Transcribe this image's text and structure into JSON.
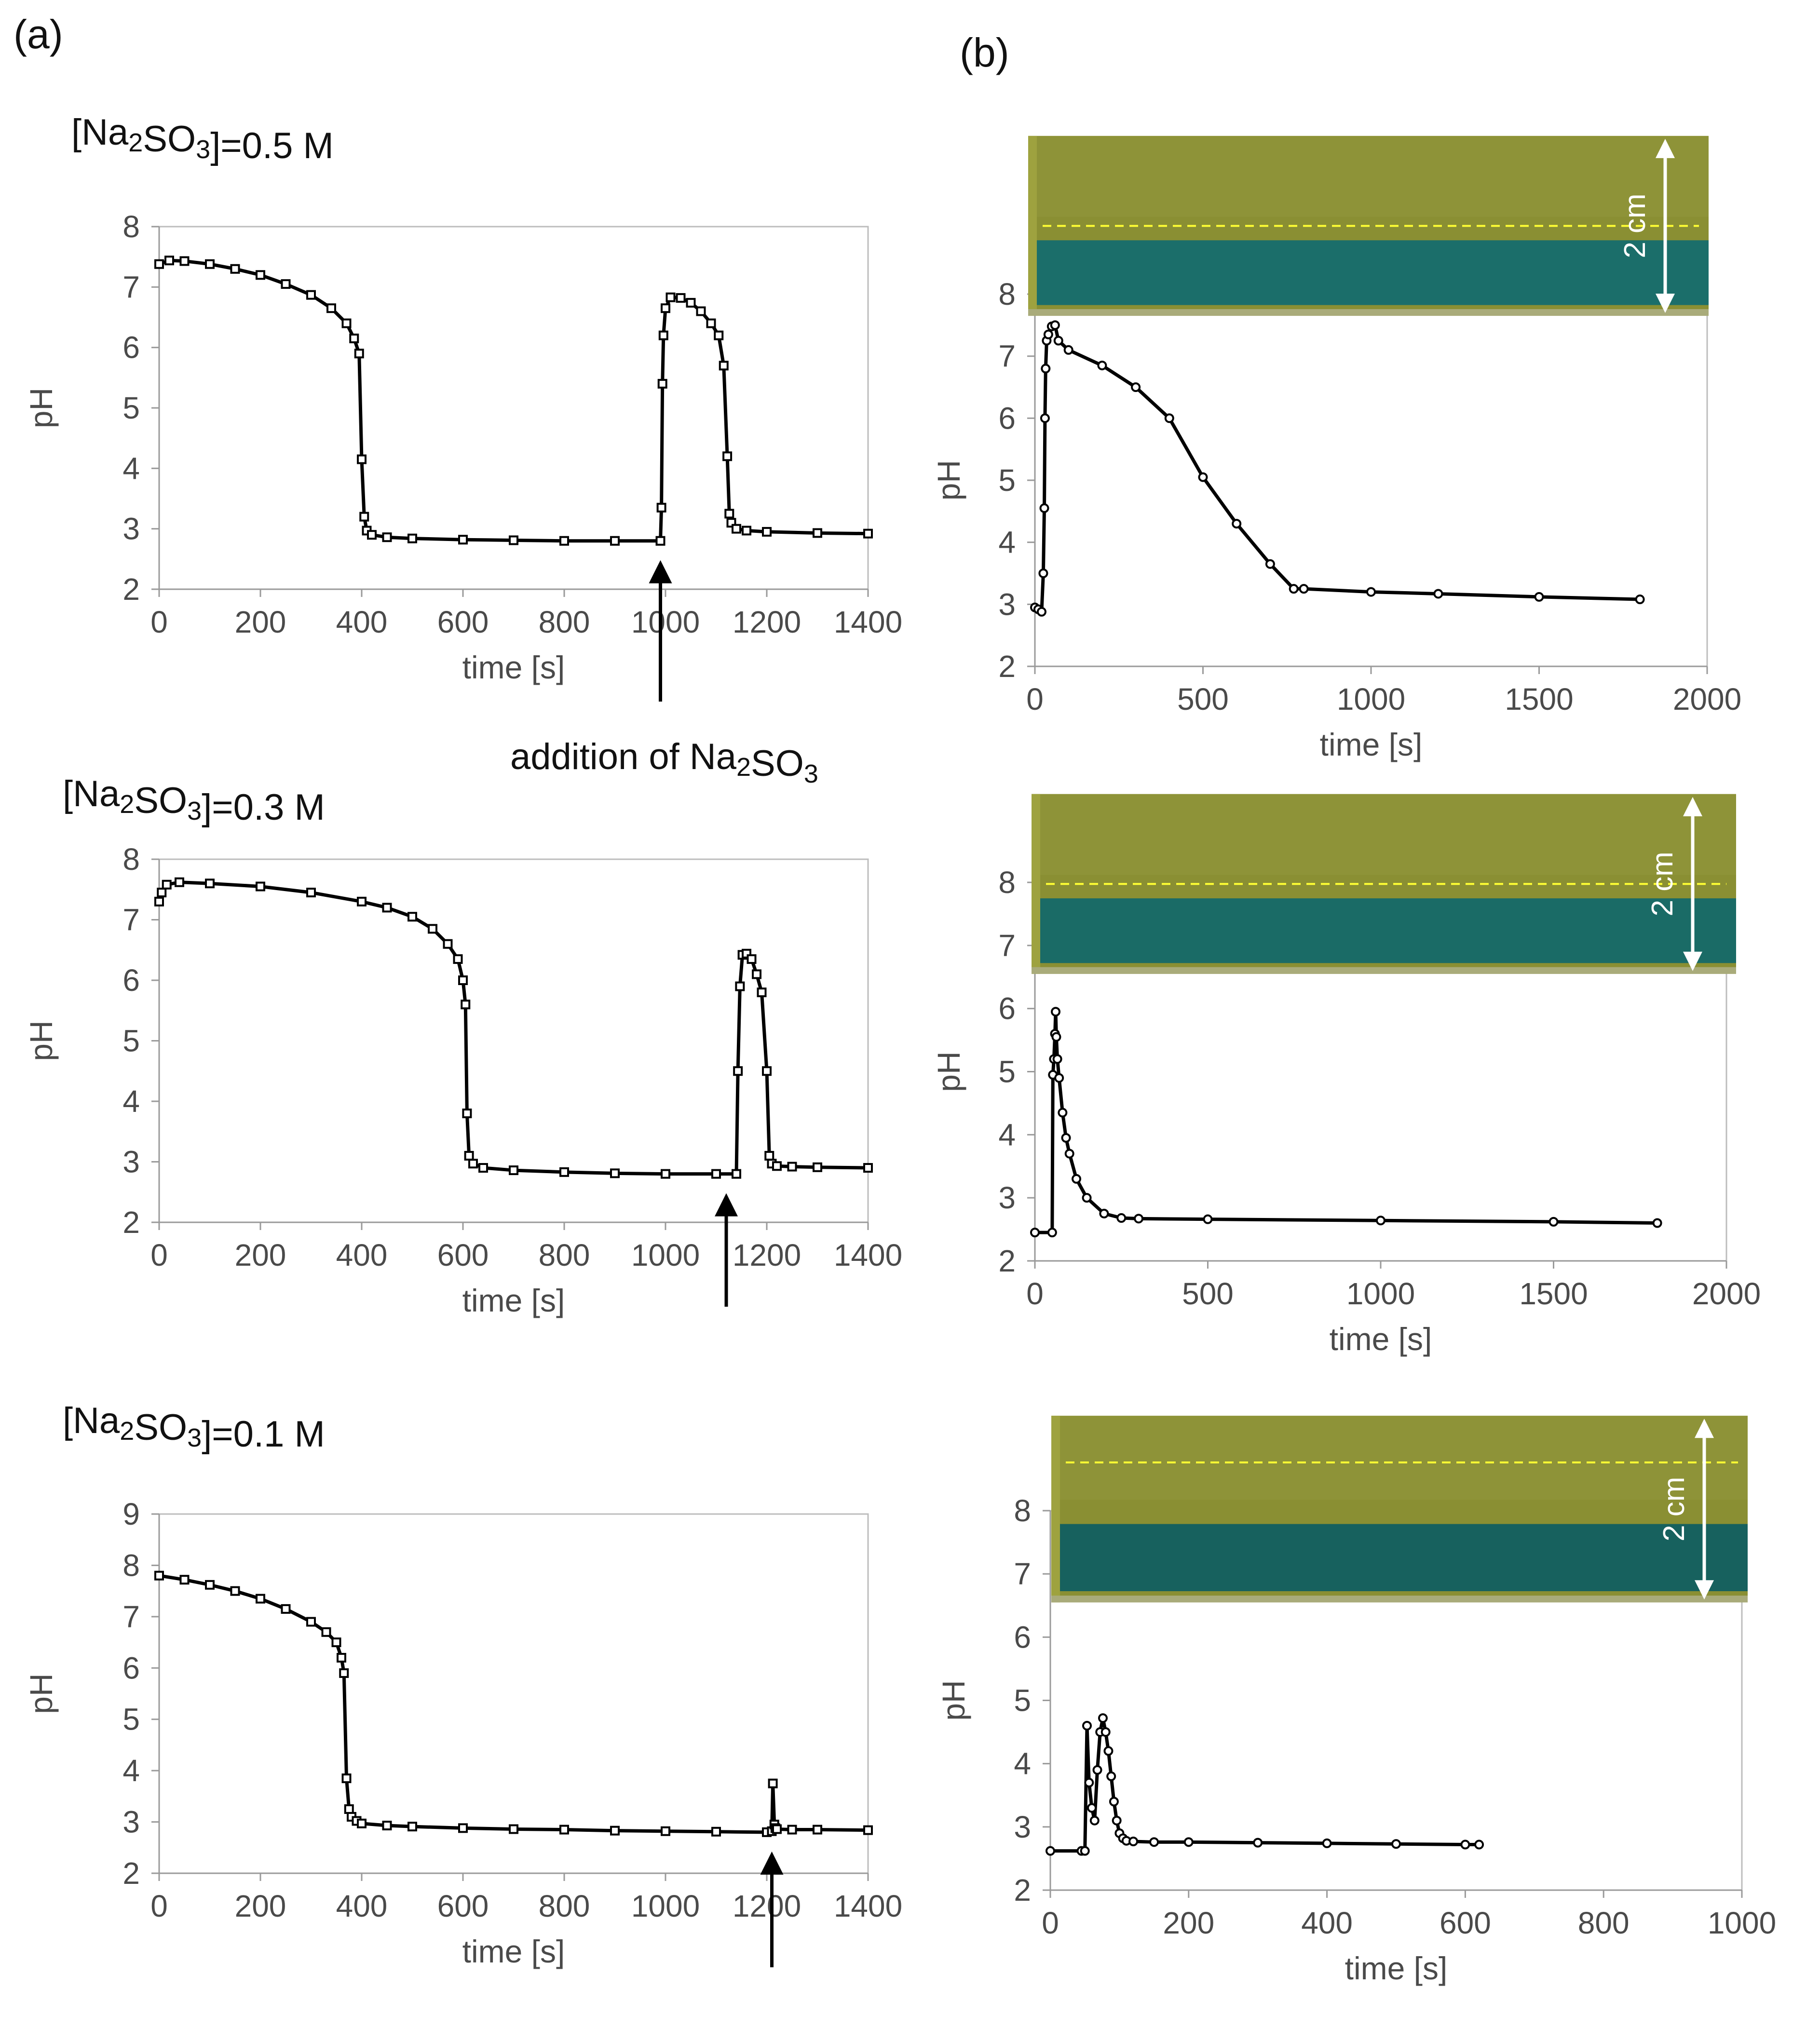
{
  "panel_labels": {
    "a": "(a)",
    "b": "(b)"
  },
  "annotation": "addition of Na₂SO₃",
  "scale_label": "2 cm",
  "chart_data": [
    {
      "id": "a1",
      "type": "scatter",
      "condition": "[Na₂SO₃]=0.5 M",
      "xlabel": "time [s]",
      "ylabel": "pH",
      "xlim": [
        0,
        1400
      ],
      "ylim": [
        2,
        8
      ],
      "xticks": [
        0,
        200,
        400,
        600,
        800,
        1000,
        1200,
        1400
      ],
      "yticks": [
        2,
        3,
        4,
        5,
        6,
        7,
        8
      ],
      "marker": "square",
      "x_fmt": "raw",
      "addition_at": 990,
      "series": [
        {
          "name": "pH",
          "x": [
            0,
            20,
            50,
            100,
            150,
            200,
            250,
            300,
            340,
            370,
            385,
            395,
            400,
            405,
            410,
            420,
            450,
            500,
            600,
            700,
            800,
            900,
            990,
            992,
            994,
            996,
            1000,
            1010,
            1030,
            1050,
            1070,
            1090,
            1105,
            1115,
            1122,
            1126,
            1130,
            1140,
            1160,
            1200,
            1300,
            1400
          ],
          "y": [
            7.38,
            7.44,
            7.43,
            7.38,
            7.3,
            7.2,
            7.05,
            6.87,
            6.65,
            6.4,
            6.15,
            5.9,
            4.15,
            3.2,
            2.97,
            2.9,
            2.86,
            2.84,
            2.82,
            2.81,
            2.8,
            2.8,
            2.8,
            3.35,
            5.4,
            6.2,
            6.65,
            6.83,
            6.82,
            6.74,
            6.6,
            6.4,
            6.2,
            5.7,
            4.2,
            3.25,
            3.1,
            3.0,
            2.97,
            2.95,
            2.93,
            2.92
          ]
        }
      ]
    },
    {
      "id": "a2",
      "type": "scatter",
      "condition": "[Na₂SO₃]=0.3 M",
      "xlabel": "time [s]",
      "ylabel": "pH",
      "xlim": [
        0,
        1400
      ],
      "ylim": [
        2,
        8
      ],
      "xticks": [
        0,
        200,
        400,
        600,
        800,
        1000,
        1200,
        1400
      ],
      "yticks": [
        2,
        3,
        4,
        5,
        6,
        7,
        8
      ],
      "marker": "square",
      "x_fmt": "raw",
      "addition_at": 1120,
      "series": [
        {
          "name": "pH",
          "x": [
            0,
            5,
            15,
            40,
            100,
            200,
            300,
            400,
            450,
            500,
            540,
            570,
            590,
            600,
            605,
            608,
            612,
            620,
            640,
            700,
            800,
            900,
            1000,
            1100,
            1140,
            1143,
            1147,
            1152,
            1160,
            1170,
            1180,
            1190,
            1200,
            1205,
            1210,
            1220,
            1250,
            1300,
            1400
          ],
          "y": [
            7.3,
            7.45,
            7.58,
            7.62,
            7.6,
            7.55,
            7.45,
            7.3,
            7.2,
            7.05,
            6.85,
            6.6,
            6.35,
            6.0,
            5.6,
            3.8,
            3.1,
            2.97,
            2.9,
            2.86,
            2.83,
            2.81,
            2.8,
            2.8,
            2.8,
            4.5,
            5.9,
            6.42,
            6.44,
            6.35,
            6.1,
            5.8,
            4.5,
            3.1,
            2.97,
            2.93,
            2.92,
            2.91,
            2.9
          ]
        }
      ]
    },
    {
      "id": "a3",
      "type": "scatter",
      "condition": "[Na₂SO₃]=0.1 M",
      "xlabel": "time [s]",
      "ylabel": "pH",
      "xlim": [
        0,
        1400
      ],
      "ylim": [
        2,
        9
      ],
      "xticks": [
        0,
        200,
        400,
        600,
        800,
        1000,
        1200,
        1400
      ],
      "yticks": [
        2,
        3,
        4,
        5,
        6,
        7,
        8,
        9
      ],
      "marker": "square",
      "x_fmt": "raw",
      "addition_at": 1210,
      "series": [
        {
          "name": "pH",
          "x": [
            0,
            50,
            100,
            150,
            200,
            250,
            300,
            330,
            350,
            360,
            365,
            370,
            375,
            380,
            390,
            400,
            450,
            500,
            600,
            700,
            800,
            900,
            1000,
            1100,
            1200,
            1210,
            1212,
            1215,
            1217,
            1220,
            1250,
            1300,
            1400
          ],
          "y": [
            7.8,
            7.72,
            7.62,
            7.5,
            7.35,
            7.15,
            6.9,
            6.7,
            6.5,
            6.2,
            5.9,
            3.85,
            3.25,
            3.1,
            3.02,
            2.97,
            2.93,
            2.91,
            2.88,
            2.86,
            2.85,
            2.83,
            2.82,
            2.81,
            2.8,
            2.82,
            3.75,
            2.95,
            2.88,
            2.86,
            2.85,
            2.85,
            2.84
          ]
        }
      ]
    },
    {
      "id": "b1",
      "type": "scatter",
      "xlabel": "time [s]",
      "ylabel": "pH",
      "xlim": [
        0,
        2000
      ],
      "ylim": [
        2,
        8
      ],
      "xticks": [
        0,
        500,
        1000,
        1500,
        2000
      ],
      "yticks": [
        2,
        3,
        4,
        5,
        6,
        7,
        8
      ],
      "marker": "circle",
      "x_fmt": "raw",
      "image_strip": {
        "ymin": 7.65,
        "ymax": 10.55,
        "band_color": "#1b6e6a",
        "dash_pct": 0.5
      },
      "series": [
        {
          "name": "pH",
          "x": [
            0,
            10,
            20,
            25,
            28,
            30,
            32,
            35,
            40,
            50,
            60,
            70,
            100,
            200,
            300,
            400,
            500,
            600,
            700,
            770,
            800,
            1000,
            1200,
            1500,
            1800
          ],
          "y": [
            2.95,
            2.92,
            2.88,
            3.5,
            4.55,
            6.0,
            6.8,
            7.25,
            7.35,
            7.48,
            7.5,
            7.25,
            7.1,
            6.85,
            6.5,
            6.0,
            5.05,
            4.3,
            3.65,
            3.25,
            3.25,
            3.2,
            3.17,
            3.12,
            3.08
          ]
        }
      ]
    },
    {
      "id": "b2",
      "type": "scatter",
      "xlabel": "time [s]",
      "ylabel": "pH",
      "xlim": [
        0,
        2000
      ],
      "ylim": [
        2,
        8
      ],
      "xticks": [
        0,
        500,
        1000,
        1500,
        2000
      ],
      "yticks": [
        2,
        3,
        4,
        5,
        6,
        7,
        8
      ],
      "marker": "circle",
      "x_fmt": "raw",
      "image_strip": {
        "ymin": 6.55,
        "ymax": 9.4,
        "band_color": "#1a6b66",
        "dash_pct": 0.5
      },
      "series": [
        {
          "name": "pH",
          "x": [
            0,
            50,
            52,
            55,
            58,
            60,
            62,
            65,
            70,
            80,
            90,
            100,
            120,
            150,
            200,
            250,
            300,
            500,
            1000,
            1500,
            1800
          ],
          "y": [
            2.45,
            2.45,
            4.95,
            5.2,
            5.6,
            5.95,
            5.55,
            5.2,
            4.9,
            4.35,
            3.95,
            3.7,
            3.3,
            3.0,
            2.75,
            2.68,
            2.67,
            2.66,
            2.64,
            2.62,
            2.6
          ]
        }
      ]
    },
    {
      "id": "b3",
      "type": "scatter",
      "xlabel": "time [s]",
      "ylabel": "pH",
      "xlim": [
        0,
        1000
      ],
      "ylim": [
        2,
        8
      ],
      "xticks": [
        0,
        200,
        400,
        600,
        800,
        1000
      ],
      "yticks": [
        2,
        3,
        4,
        5,
        6,
        7,
        8
      ],
      "marker": "circle",
      "x_fmt": "raw",
      "image_strip": {
        "ymin": 6.55,
        "ymax": 9.5,
        "band_color": "#17615e",
        "dash_pct": 0.25
      },
      "series": [
        {
          "name": "pH",
          "x": [
            0,
            45,
            50,
            53,
            56,
            60,
            64,
            68,
            72,
            76,
            80,
            84,
            88,
            92,
            96,
            100,
            105,
            110,
            120,
            150,
            200,
            300,
            400,
            500,
            600,
            620
          ],
          "y": [
            2.62,
            2.62,
            2.62,
            4.6,
            3.7,
            3.3,
            3.1,
            3.9,
            4.5,
            4.72,
            4.5,
            4.2,
            3.8,
            3.4,
            3.1,
            2.9,
            2.82,
            2.78,
            2.77,
            2.76,
            2.76,
            2.75,
            2.74,
            2.73,
            2.72,
            2.72
          ]
        }
      ]
    }
  ]
}
